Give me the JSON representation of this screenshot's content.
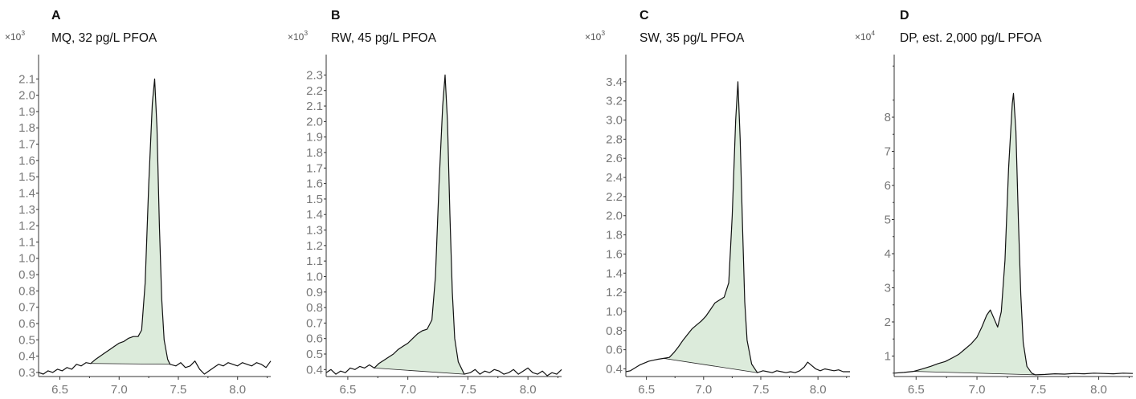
{
  "chart_data": [
    {
      "type": "line",
      "panel_label": "A",
      "title": "MQ, 32 pg/L PFOA",
      "y_multiplier": {
        "base": "×10",
        "exponent": "3"
      },
      "xlim": [
        6.32,
        8.28
      ],
      "ylim": [
        0.275,
        2.2
      ],
      "x_ticks": [
        6.5,
        7.0,
        7.5,
        8.0
      ],
      "x_tick_labels": [
        "6.5",
        "7.0",
        "7.5",
        "8.0"
      ],
      "y_ticks": [
        0.3,
        0.4,
        0.5,
        0.6,
        0.7,
        0.8,
        0.9,
        1.0,
        1.1,
        1.2,
        1.3,
        1.4,
        1.5,
        1.6,
        1.7,
        1.8,
        1.9,
        2.0,
        2.1
      ],
      "y_tick_labels": [
        "0.3",
        "0.4",
        "0.5",
        "0.6",
        "0.7",
        "0.8",
        "0.9",
        "1.0",
        "1.1",
        "1.2",
        "1.3",
        "1.4",
        "1.5",
        "1.6",
        "1.7",
        "1.8",
        "1.9",
        "2.0",
        "2.1"
      ],
      "integration": {
        "start": [
          6.76,
          0.355
        ],
        "end": [
          7.43,
          0.35
        ]
      },
      "trace": [
        [
          6.32,
          0.3
        ],
        [
          6.36,
          0.29
        ],
        [
          6.4,
          0.31
        ],
        [
          6.44,
          0.3
        ],
        [
          6.48,
          0.32
        ],
        [
          6.52,
          0.31
        ],
        [
          6.56,
          0.33
        ],
        [
          6.6,
          0.32
        ],
        [
          6.64,
          0.35
        ],
        [
          6.68,
          0.34
        ],
        [
          6.72,
          0.36
        ],
        [
          6.76,
          0.355
        ],
        [
          6.8,
          0.38
        ],
        [
          6.84,
          0.4
        ],
        [
          6.88,
          0.42
        ],
        [
          6.92,
          0.44
        ],
        [
          6.96,
          0.46
        ],
        [
          7.0,
          0.48
        ],
        [
          7.04,
          0.49
        ],
        [
          7.08,
          0.51
        ],
        [
          7.12,
          0.52
        ],
        [
          7.16,
          0.52
        ],
        [
          7.19,
          0.56
        ],
        [
          7.22,
          0.85
        ],
        [
          7.25,
          1.45
        ],
        [
          7.28,
          1.95
        ],
        [
          7.3,
          2.1
        ],
        [
          7.32,
          1.8
        ],
        [
          7.34,
          1.2
        ],
        [
          7.36,
          0.75
        ],
        [
          7.38,
          0.5
        ],
        [
          7.41,
          0.38
        ],
        [
          7.43,
          0.35
        ],
        [
          7.48,
          0.34
        ],
        [
          7.52,
          0.36
        ],
        [
          7.56,
          0.33
        ],
        [
          7.6,
          0.34
        ],
        [
          7.64,
          0.37
        ],
        [
          7.68,
          0.32
        ],
        [
          7.72,
          0.29
        ],
        [
          7.76,
          0.31
        ],
        [
          7.8,
          0.33
        ],
        [
          7.84,
          0.35
        ],
        [
          7.88,
          0.34
        ],
        [
          7.92,
          0.36
        ],
        [
          7.96,
          0.35
        ],
        [
          8.0,
          0.34
        ],
        [
          8.04,
          0.36
        ],
        [
          8.08,
          0.35
        ],
        [
          8.12,
          0.34
        ],
        [
          8.16,
          0.36
        ],
        [
          8.2,
          0.35
        ],
        [
          8.24,
          0.33
        ],
        [
          8.28,
          0.37
        ]
      ]
    },
    {
      "type": "line",
      "panel_label": "B",
      "title": "RW, 45 pg/L PFOA",
      "y_multiplier": {
        "base": "×10",
        "exponent": "3"
      },
      "xlim": [
        6.32,
        8.28
      ],
      "ylim": [
        0.355,
        2.38
      ],
      "x_ticks": [
        6.5,
        7.0,
        7.5,
        8.0
      ],
      "x_tick_labels": [
        "6.5",
        "7.0",
        "7.5",
        "8.0"
      ],
      "y_ticks": [
        0.4,
        0.5,
        0.6,
        0.7,
        0.8,
        0.9,
        1.0,
        1.1,
        1.2,
        1.3,
        1.4,
        1.5,
        1.6,
        1.7,
        1.8,
        1.9,
        2.0,
        2.1,
        2.2,
        2.3
      ],
      "y_tick_labels": [
        "0.4",
        "0.5",
        "0.6",
        "0.7",
        "0.8",
        "0.9",
        "1.0",
        "1.1",
        "1.2",
        "1.3",
        "1.4",
        "1.5",
        "1.6",
        "1.7",
        "1.8",
        "1.9",
        "2.0",
        "2.1",
        "2.2",
        "2.3"
      ],
      "integration": {
        "start": [
          6.72,
          0.41
        ],
        "end": [
          7.47,
          0.37
        ]
      },
      "trace": [
        [
          6.32,
          0.38
        ],
        [
          6.36,
          0.4
        ],
        [
          6.4,
          0.37
        ],
        [
          6.44,
          0.39
        ],
        [
          6.48,
          0.38
        ],
        [
          6.52,
          0.41
        ],
        [
          6.56,
          0.4
        ],
        [
          6.6,
          0.42
        ],
        [
          6.64,
          0.41
        ],
        [
          6.68,
          0.43
        ],
        [
          6.72,
          0.41
        ],
        [
          6.76,
          0.44
        ],
        [
          6.8,
          0.46
        ],
        [
          6.84,
          0.48
        ],
        [
          6.88,
          0.5
        ],
        [
          6.92,
          0.53
        ],
        [
          6.96,
          0.55
        ],
        [
          7.0,
          0.57
        ],
        [
          7.04,
          0.6
        ],
        [
          7.08,
          0.63
        ],
        [
          7.12,
          0.65
        ],
        [
          7.16,
          0.66
        ],
        [
          7.2,
          0.72
        ],
        [
          7.23,
          1.0
        ],
        [
          7.26,
          1.6
        ],
        [
          7.29,
          2.1
        ],
        [
          7.31,
          2.3
        ],
        [
          7.33,
          2.0
        ],
        [
          7.35,
          1.4
        ],
        [
          7.37,
          0.9
        ],
        [
          7.39,
          0.6
        ],
        [
          7.42,
          0.45
        ],
        [
          7.47,
          0.37
        ],
        [
          7.52,
          0.38
        ],
        [
          7.56,
          0.4
        ],
        [
          7.6,
          0.37
        ],
        [
          7.64,
          0.39
        ],
        [
          7.68,
          0.38
        ],
        [
          7.72,
          0.4
        ],
        [
          7.76,
          0.39
        ],
        [
          7.8,
          0.37
        ],
        [
          7.84,
          0.38
        ],
        [
          7.88,
          0.4
        ],
        [
          7.92,
          0.37
        ],
        [
          7.96,
          0.39
        ],
        [
          8.0,
          0.41
        ],
        [
          8.04,
          0.38
        ],
        [
          8.08,
          0.37
        ],
        [
          8.12,
          0.39
        ],
        [
          8.16,
          0.36
        ],
        [
          8.2,
          0.38
        ],
        [
          8.24,
          0.37
        ],
        [
          8.28,
          0.4
        ]
      ]
    },
    {
      "type": "line",
      "panel_label": "C",
      "title": "SW, 35 pg/L PFOA",
      "y_multiplier": {
        "base": "×10",
        "exponent": "3"
      },
      "xlim": [
        6.32,
        8.28
      ],
      "ylim": [
        0.32,
        3.6
      ],
      "x_ticks": [
        6.5,
        7.0,
        7.5,
        8.0
      ],
      "x_tick_labels": [
        "6.5",
        "7.0",
        "7.5",
        "8.0"
      ],
      "y_ticks": [
        0.4,
        0.6,
        0.8,
        1.0,
        1.2,
        1.4,
        1.6,
        1.8,
        2.0,
        2.2,
        2.4,
        2.6,
        2.8,
        3.0,
        3.2,
        3.4
      ],
      "y_tick_labels": [
        "0.4",
        "0.6",
        "0.8",
        "1.0",
        "1.2",
        "1.4",
        "1.6",
        "1.8",
        "2.0",
        "2.2",
        "2.4",
        "2.6",
        "2.8",
        "3.0",
        "3.2",
        "3.4"
      ],
      "integration": {
        "start": [
          6.65,
          0.51
        ],
        "end": [
          7.47,
          0.36
        ]
      },
      "trace": [
        [
          6.32,
          0.37
        ],
        [
          6.36,
          0.38
        ],
        [
          6.4,
          0.41
        ],
        [
          6.44,
          0.44
        ],
        [
          6.48,
          0.46
        ],
        [
          6.52,
          0.48
        ],
        [
          6.56,
          0.49
        ],
        [
          6.6,
          0.5
        ],
        [
          6.65,
          0.51
        ],
        [
          6.7,
          0.52
        ],
        [
          6.74,
          0.57
        ],
        [
          6.78,
          0.63
        ],
        [
          6.82,
          0.7
        ],
        [
          6.86,
          0.76
        ],
        [
          6.9,
          0.82
        ],
        [
          6.94,
          0.86
        ],
        [
          6.98,
          0.9
        ],
        [
          7.02,
          0.95
        ],
        [
          7.06,
          1.02
        ],
        [
          7.1,
          1.09
        ],
        [
          7.14,
          1.12
        ],
        [
          7.18,
          1.15
        ],
        [
          7.22,
          1.3
        ],
        [
          7.25,
          2.0
        ],
        [
          7.28,
          3.0
        ],
        [
          7.3,
          3.4
        ],
        [
          7.32,
          2.8
        ],
        [
          7.34,
          1.9
        ],
        [
          7.36,
          1.1
        ],
        [
          7.38,
          0.7
        ],
        [
          7.42,
          0.45
        ],
        [
          7.47,
          0.36
        ],
        [
          7.52,
          0.38
        ],
        [
          7.56,
          0.37
        ],
        [
          7.6,
          0.36
        ],
        [
          7.64,
          0.38
        ],
        [
          7.68,
          0.37
        ],
        [
          7.72,
          0.36
        ],
        [
          7.76,
          0.37
        ],
        [
          7.8,
          0.36
        ],
        [
          7.84,
          0.38
        ],
        [
          7.88,
          0.42
        ],
        [
          7.91,
          0.47
        ],
        [
          7.94,
          0.44
        ],
        [
          7.98,
          0.4
        ],
        [
          8.02,
          0.38
        ],
        [
          8.06,
          0.4
        ],
        [
          8.1,
          0.39
        ],
        [
          8.14,
          0.38
        ],
        [
          8.18,
          0.39
        ],
        [
          8.22,
          0.37
        ],
        [
          8.28,
          0.37
        ]
      ]
    },
    {
      "type": "line",
      "panel_label": "D",
      "title": "DP, est. 2,000 pg/L PFOA",
      "y_multiplier": {
        "base": "×10",
        "exponent": "4"
      },
      "xlim": [
        6.32,
        8.28
      ],
      "ylim": [
        0.4,
        9.6
      ],
      "x_ticks": [
        6.5,
        7.0,
        7.5,
        8.0
      ],
      "x_tick_labels": [
        "6.5",
        "7.0",
        "7.5",
        "8.0"
      ],
      "y_ticks": [
        1,
        2,
        3,
        4,
        5,
        6,
        7,
        8
      ],
      "y_tick_labels": [
        "1",
        "2",
        "3",
        "4",
        "5",
        "6",
        "7",
        "8"
      ],
      "integration": {
        "start": [
          6.48,
          0.55
        ],
        "end": [
          7.48,
          0.45
        ]
      },
      "trace": [
        [
          6.32,
          0.5
        ],
        [
          6.4,
          0.52
        ],
        [
          6.48,
          0.55
        ],
        [
          6.55,
          0.62
        ],
        [
          6.62,
          0.7
        ],
        [
          6.68,
          0.78
        ],
        [
          6.74,
          0.84
        ],
        [
          6.8,
          0.95
        ],
        [
          6.85,
          1.05
        ],
        [
          6.9,
          1.2
        ],
        [
          6.95,
          1.35
        ],
        [
          7.0,
          1.55
        ],
        [
          7.04,
          1.85
        ],
        [
          7.08,
          2.2
        ],
        [
          7.11,
          2.35
        ],
        [
          7.14,
          2.1
        ],
        [
          7.17,
          1.85
        ],
        [
          7.2,
          2.3
        ],
        [
          7.23,
          3.8
        ],
        [
          7.26,
          6.5
        ],
        [
          7.29,
          8.4
        ],
        [
          7.3,
          8.7
        ],
        [
          7.32,
          7.6
        ],
        [
          7.34,
          5.0
        ],
        [
          7.36,
          2.8
        ],
        [
          7.38,
          1.4
        ],
        [
          7.41,
          0.7
        ],
        [
          7.45,
          0.5
        ],
        [
          7.48,
          0.45
        ],
        [
          7.56,
          0.46
        ],
        [
          7.64,
          0.48
        ],
        [
          7.72,
          0.47
        ],
        [
          7.8,
          0.49
        ],
        [
          7.88,
          0.48
        ],
        [
          7.96,
          0.5
        ],
        [
          8.04,
          0.49
        ],
        [
          8.12,
          0.48
        ],
        [
          8.2,
          0.5
        ],
        [
          8.28,
          0.49
        ]
      ]
    }
  ]
}
